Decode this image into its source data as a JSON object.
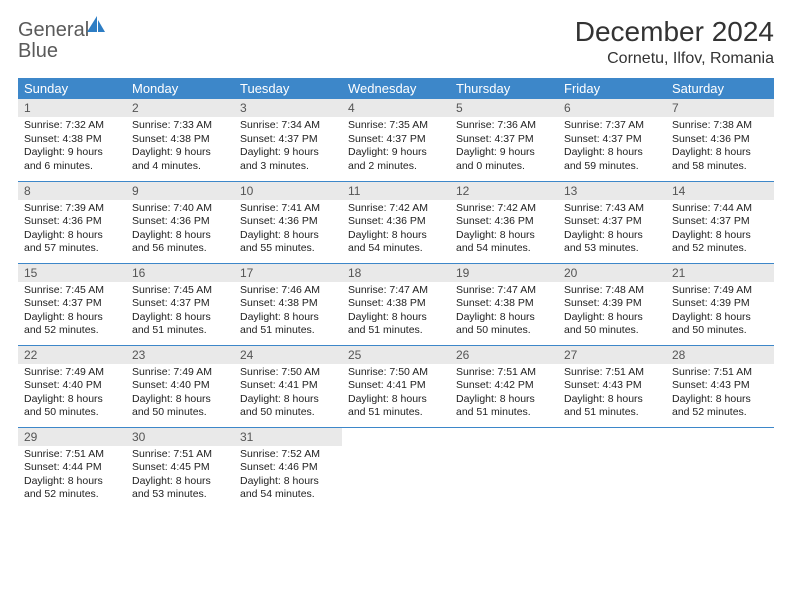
{
  "brand": {
    "name1": "General",
    "name2": "Blue"
  },
  "title": "December 2024",
  "location": "Cornetu, Ilfov, Romania",
  "colors": {
    "header_bg": "#3d87c9",
    "header_fg": "#ffffff",
    "daynum_bg": "#e9e9e9",
    "rule": "#3d87c9",
    "logo_gray": "#5a5a5a",
    "logo_blue": "#2d7dc4"
  },
  "weekdays": [
    "Sunday",
    "Monday",
    "Tuesday",
    "Wednesday",
    "Thursday",
    "Friday",
    "Saturday"
  ],
  "weeks": [
    [
      {
        "n": "1",
        "sr": "Sunrise: 7:32 AM",
        "ss": "Sunset: 4:38 PM",
        "dl": "Daylight: 9 hours and 6 minutes."
      },
      {
        "n": "2",
        "sr": "Sunrise: 7:33 AM",
        "ss": "Sunset: 4:38 PM",
        "dl": "Daylight: 9 hours and 4 minutes."
      },
      {
        "n": "3",
        "sr": "Sunrise: 7:34 AM",
        "ss": "Sunset: 4:37 PM",
        "dl": "Daylight: 9 hours and 3 minutes."
      },
      {
        "n": "4",
        "sr": "Sunrise: 7:35 AM",
        "ss": "Sunset: 4:37 PM",
        "dl": "Daylight: 9 hours and 2 minutes."
      },
      {
        "n": "5",
        "sr": "Sunrise: 7:36 AM",
        "ss": "Sunset: 4:37 PM",
        "dl": "Daylight: 9 hours and 0 minutes."
      },
      {
        "n": "6",
        "sr": "Sunrise: 7:37 AM",
        "ss": "Sunset: 4:37 PM",
        "dl": "Daylight: 8 hours and 59 minutes."
      },
      {
        "n": "7",
        "sr": "Sunrise: 7:38 AM",
        "ss": "Sunset: 4:36 PM",
        "dl": "Daylight: 8 hours and 58 minutes."
      }
    ],
    [
      {
        "n": "8",
        "sr": "Sunrise: 7:39 AM",
        "ss": "Sunset: 4:36 PM",
        "dl": "Daylight: 8 hours and 57 minutes."
      },
      {
        "n": "9",
        "sr": "Sunrise: 7:40 AM",
        "ss": "Sunset: 4:36 PM",
        "dl": "Daylight: 8 hours and 56 minutes."
      },
      {
        "n": "10",
        "sr": "Sunrise: 7:41 AM",
        "ss": "Sunset: 4:36 PM",
        "dl": "Daylight: 8 hours and 55 minutes."
      },
      {
        "n": "11",
        "sr": "Sunrise: 7:42 AM",
        "ss": "Sunset: 4:36 PM",
        "dl": "Daylight: 8 hours and 54 minutes."
      },
      {
        "n": "12",
        "sr": "Sunrise: 7:42 AM",
        "ss": "Sunset: 4:36 PM",
        "dl": "Daylight: 8 hours and 54 minutes."
      },
      {
        "n": "13",
        "sr": "Sunrise: 7:43 AM",
        "ss": "Sunset: 4:37 PM",
        "dl": "Daylight: 8 hours and 53 minutes."
      },
      {
        "n": "14",
        "sr": "Sunrise: 7:44 AM",
        "ss": "Sunset: 4:37 PM",
        "dl": "Daylight: 8 hours and 52 minutes."
      }
    ],
    [
      {
        "n": "15",
        "sr": "Sunrise: 7:45 AM",
        "ss": "Sunset: 4:37 PM",
        "dl": "Daylight: 8 hours and 52 minutes."
      },
      {
        "n": "16",
        "sr": "Sunrise: 7:45 AM",
        "ss": "Sunset: 4:37 PM",
        "dl": "Daylight: 8 hours and 51 minutes."
      },
      {
        "n": "17",
        "sr": "Sunrise: 7:46 AM",
        "ss": "Sunset: 4:38 PM",
        "dl": "Daylight: 8 hours and 51 minutes."
      },
      {
        "n": "18",
        "sr": "Sunrise: 7:47 AM",
        "ss": "Sunset: 4:38 PM",
        "dl": "Daylight: 8 hours and 51 minutes."
      },
      {
        "n": "19",
        "sr": "Sunrise: 7:47 AM",
        "ss": "Sunset: 4:38 PM",
        "dl": "Daylight: 8 hours and 50 minutes."
      },
      {
        "n": "20",
        "sr": "Sunrise: 7:48 AM",
        "ss": "Sunset: 4:39 PM",
        "dl": "Daylight: 8 hours and 50 minutes."
      },
      {
        "n": "21",
        "sr": "Sunrise: 7:49 AM",
        "ss": "Sunset: 4:39 PM",
        "dl": "Daylight: 8 hours and 50 minutes."
      }
    ],
    [
      {
        "n": "22",
        "sr": "Sunrise: 7:49 AM",
        "ss": "Sunset: 4:40 PM",
        "dl": "Daylight: 8 hours and 50 minutes."
      },
      {
        "n": "23",
        "sr": "Sunrise: 7:49 AM",
        "ss": "Sunset: 4:40 PM",
        "dl": "Daylight: 8 hours and 50 minutes."
      },
      {
        "n": "24",
        "sr": "Sunrise: 7:50 AM",
        "ss": "Sunset: 4:41 PM",
        "dl": "Daylight: 8 hours and 50 minutes."
      },
      {
        "n": "25",
        "sr": "Sunrise: 7:50 AM",
        "ss": "Sunset: 4:41 PM",
        "dl": "Daylight: 8 hours and 51 minutes."
      },
      {
        "n": "26",
        "sr": "Sunrise: 7:51 AM",
        "ss": "Sunset: 4:42 PM",
        "dl": "Daylight: 8 hours and 51 minutes."
      },
      {
        "n": "27",
        "sr": "Sunrise: 7:51 AM",
        "ss": "Sunset: 4:43 PM",
        "dl": "Daylight: 8 hours and 51 minutes."
      },
      {
        "n": "28",
        "sr": "Sunrise: 7:51 AM",
        "ss": "Sunset: 4:43 PM",
        "dl": "Daylight: 8 hours and 52 minutes."
      }
    ],
    [
      {
        "n": "29",
        "sr": "Sunrise: 7:51 AM",
        "ss": "Sunset: 4:44 PM",
        "dl": "Daylight: 8 hours and 52 minutes."
      },
      {
        "n": "30",
        "sr": "Sunrise: 7:51 AM",
        "ss": "Sunset: 4:45 PM",
        "dl": "Daylight: 8 hours and 53 minutes."
      },
      {
        "n": "31",
        "sr": "Sunrise: 7:52 AM",
        "ss": "Sunset: 4:46 PM",
        "dl": "Daylight: 8 hours and 54 minutes."
      },
      {
        "empty": true
      },
      {
        "empty": true
      },
      {
        "empty": true
      },
      {
        "empty": true
      }
    ]
  ]
}
